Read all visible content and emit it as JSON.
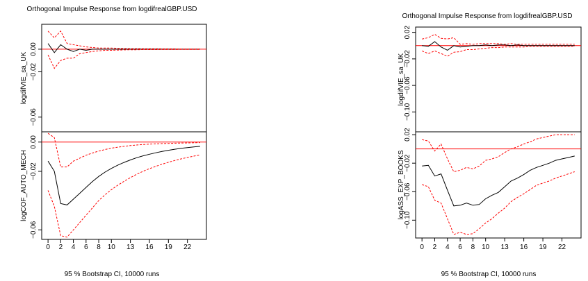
{
  "chart_data": [
    {
      "type": "line",
      "title": "Orthogonal Impulse Response from logdifrealGBP.USD",
      "footer": "95 % Bootstrap CI,  10000 runs",
      "x": [
        0,
        1,
        2,
        3,
        4,
        5,
        6,
        7,
        8,
        9,
        10,
        11,
        12,
        13,
        14,
        15,
        16,
        17,
        18,
        19,
        20,
        21,
        22,
        23,
        24
      ],
      "xticks": [
        "0",
        "2",
        "4",
        "6",
        "8",
        "10",
        "13",
        "16",
        "19",
        "22"
      ],
      "xtick_values": [
        0,
        2,
        4,
        6,
        8,
        10,
        13,
        16,
        19,
        22
      ],
      "panels": [
        {
          "ylabel": "logdifVIE_sa_UK",
          "ylim": [
            -0.073,
            0.022
          ],
          "yticks": [
            "0.00",
            "−0.02",
            "−0.06"
          ],
          "ytick_values": [
            0.0,
            -0.02,
            -0.06
          ],
          "series": [
            {
              "role": "response",
              "color": "#000000",
              "values": [
                0.005,
                -0.003,
                0.004,
                0.0,
                -0.002,
                0.0,
                -0.001,
                0.0,
                0.0,
                0.0,
                0.0,
                0.0,
                0.0,
                0.0,
                0.0,
                0.0,
                0.0,
                0.0,
                0.0,
                0.0,
                0.0,
                0.0,
                0.0,
                0.0,
                0.0
              ]
            },
            {
              "role": "upper",
              "color": "#ff0000",
              "values": [
                0.016,
                0.01,
                0.016,
                0.005,
                0.004,
                0.003,
                0.002,
                0.0015,
                0.001,
                0.001,
                0.001,
                0.0008,
                0.0006,
                0.0005,
                0.0005,
                0.0004,
                0.0004,
                0.0004,
                0.0003,
                0.0003,
                0.0003,
                0.0002,
                0.0002,
                0.0002,
                0.0002
              ]
            },
            {
              "role": "lower",
              "color": "#ff0000",
              "values": [
                -0.005,
                -0.017,
                -0.01,
                -0.008,
                -0.008,
                -0.004,
                -0.003,
                -0.002,
                -0.0015,
                -0.001,
                -0.001,
                -0.0008,
                -0.0006,
                -0.0005,
                -0.0005,
                -0.0004,
                -0.0004,
                -0.0004,
                -0.0003,
                -0.0003,
                -0.0003,
                -0.0002,
                -0.0002,
                -0.0002,
                -0.0002
              ]
            }
          ]
        },
        {
          "ylabel": "logCOF_AUTO_MECH",
          "ylim": [
            -0.0665,
            0.007
          ],
          "yticks": [
            "0.00",
            "−0.02",
            "−0.06"
          ],
          "ytick_values": [
            0.0,
            -0.02,
            -0.06
          ],
          "series": [
            {
              "role": "response",
              "color": "#000000",
              "values": [
                -0.013,
                -0.02,
                -0.042,
                -0.043,
                -0.039,
                -0.035,
                -0.031,
                -0.027,
                -0.0235,
                -0.0205,
                -0.018,
                -0.0158,
                -0.0139,
                -0.0122,
                -0.0107,
                -0.0094,
                -0.0083,
                -0.0073,
                -0.0064,
                -0.0056,
                -0.0049,
                -0.0043,
                -0.0038,
                -0.0033,
                -0.0029
              ]
            },
            {
              "role": "upper",
              "color": "#ff0000",
              "values": [
                0.006,
                0.003,
                -0.017,
                -0.017,
                -0.013,
                -0.011,
                -0.009,
                -0.0075,
                -0.0062,
                -0.0051,
                -0.0042,
                -0.0035,
                -0.0029,
                -0.0024,
                -0.002,
                -0.0017,
                -0.0014,
                -0.0012,
                -0.001,
                -0.0009,
                -0.0008,
                -0.0007,
                -0.0006,
                -0.0005,
                -0.0004
              ]
            },
            {
              "role": "lower",
              "color": "#ff0000",
              "values": [
                -0.033,
                -0.044,
                -0.064,
                -0.065,
                -0.06,
                -0.055,
                -0.05,
                -0.045,
                -0.04,
                -0.036,
                -0.0325,
                -0.0295,
                -0.0268,
                -0.0243,
                -0.022,
                -0.02,
                -0.0182,
                -0.0166,
                -0.0151,
                -0.0138,
                -0.0126,
                -0.0115,
                -0.0105,
                -0.0096,
                -0.0088
              ]
            }
          ]
        }
      ]
    },
    {
      "type": "line",
      "title": "Orthogonal Impulse Response from logdifrealGBP.USD",
      "footer": "95 % Bootstrap CI,  10000 runs",
      "x": [
        0,
        1,
        2,
        3,
        4,
        5,
        6,
        7,
        8,
        9,
        10,
        11,
        12,
        13,
        14,
        15,
        16,
        17,
        18,
        19,
        20,
        21,
        22,
        23,
        24
      ],
      "xticks": [
        "0",
        "2",
        "4",
        "6",
        "8",
        "10",
        "13",
        "16",
        "19",
        "22"
      ],
      "xtick_values": [
        0,
        2,
        4,
        6,
        8,
        10,
        13,
        16,
        19,
        22
      ],
      "panels": [
        {
          "ylabel": "logdifVIE_sa_UK",
          "ylim": [
            -0.13,
            0.028
          ],
          "yticks": [
            "0.02",
            "−0.02",
            "−0.06",
            "−0.10"
          ],
          "ytick_values": [
            0.02,
            -0.02,
            -0.06,
            -0.1
          ],
          "series": [
            {
              "role": "response",
              "color": "#000000",
              "values": [
                0.0,
                -0.001,
                0.006,
                -0.002,
                -0.007,
                0.0,
                -0.002,
                -0.001,
                0.0,
                0.0,
                0.001,
                0.0,
                0.001,
                0.001,
                0.0,
                0.001,
                0.0,
                0.0,
                0.0,
                0.0,
                0.0,
                0.0,
                0.0,
                0.0,
                0.0
              ]
            },
            {
              "role": "upper",
              "color": "#ff0000",
              "values": [
                0.01,
                0.012,
                0.017,
                0.011,
                0.01,
                0.012,
                0.002,
                0.003,
                0.002,
                0.003,
                0.003,
                0.003,
                0.003,
                0.002,
                0.003,
                0.002,
                0.002,
                0.002,
                0.002,
                0.002,
                0.002,
                0.002,
                0.002,
                0.002,
                0.002
              ]
            },
            {
              "role": "lower",
              "color": "#ff0000",
              "values": [
                -0.008,
                -0.012,
                -0.008,
                -0.012,
                -0.016,
                -0.01,
                -0.009,
                -0.006,
                -0.006,
                -0.005,
                -0.004,
                -0.003,
                -0.003,
                -0.002,
                -0.002,
                -0.002,
                -0.002,
                -0.001,
                -0.001,
                -0.001,
                -0.001,
                -0.001,
                -0.001,
                -0.001,
                -0.001
              ]
            }
          ]
        },
        {
          "ylabel": "logASS_EXP_BOOKS",
          "ylim": [
            -0.125,
            0.024
          ],
          "yticks": [
            "0.02",
            "−0.02",
            "−0.06",
            "−0.10"
          ],
          "ytick_values": [
            0.02,
            -0.02,
            -0.06,
            -0.1
          ],
          "series": [
            {
              "role": "response",
              "color": "#000000",
              "values": [
                -0.024,
                -0.023,
                -0.038,
                -0.035,
                -0.058,
                -0.08,
                -0.079,
                -0.076,
                -0.079,
                -0.078,
                -0.07,
                -0.065,
                -0.061,
                -0.053,
                -0.045,
                -0.041,
                -0.036,
                -0.03,
                -0.026,
                -0.023,
                -0.02,
                -0.016,
                -0.014,
                -0.012,
                -0.01
              ]
            },
            {
              "role": "upper",
              "color": "#ff0000",
              "values": [
                0.013,
                0.011,
                -0.003,
                0.007,
                -0.014,
                -0.032,
                -0.03,
                -0.026,
                -0.028,
                -0.024,
                -0.016,
                -0.014,
                -0.011,
                -0.005,
                0.0,
                0.003,
                0.007,
                0.01,
                0.014,
                0.016,
                0.018,
                0.02,
                0.02,
                0.02,
                0.02
              ]
            },
            {
              "role": "lower",
              "color": "#ff0000",
              "values": [
                -0.05,
                -0.053,
                -0.072,
                -0.076,
                -0.098,
                -0.12,
                -0.117,
                -0.12,
                -0.119,
                -0.112,
                -0.104,
                -0.098,
                -0.09,
                -0.083,
                -0.074,
                -0.068,
                -0.063,
                -0.057,
                -0.051,
                -0.048,
                -0.045,
                -0.041,
                -0.038,
                -0.035,
                -0.032
              ]
            }
          ]
        }
      ]
    }
  ]
}
